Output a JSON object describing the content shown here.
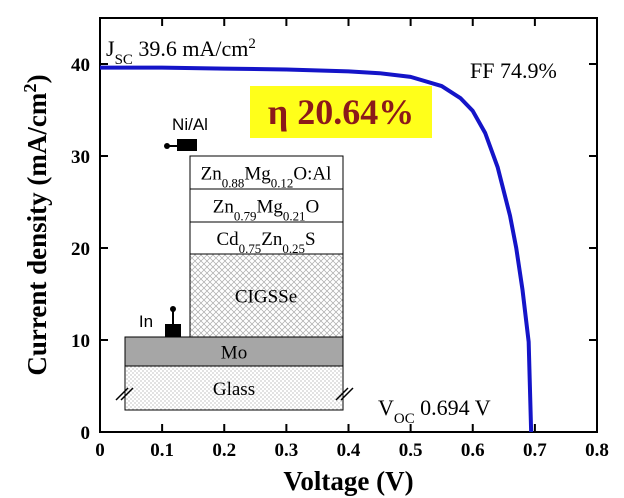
{
  "chart_data": {
    "type": "line",
    "x_label": "Voltage (V)",
    "y_label": [
      {
        "text": "Current density (mA/cm"
      },
      {
        "text": "2",
        "style": "super"
      },
      {
        "text": ")"
      }
    ],
    "x": [
      0,
      0.1,
      0.2,
      0.3,
      0.4,
      0.45,
      0.5,
      0.55,
      0.58,
      0.6,
      0.62,
      0.64,
      0.66,
      0.67,
      0.68,
      0.69,
      0.694
    ],
    "series": [
      {
        "color": "#1414c8",
        "values": [
          39.6,
          39.6,
          39.5,
          39.4,
          39.2,
          39.0,
          38.6,
          37.6,
          36.3,
          34.9,
          32.5,
          28.8,
          23.5,
          20.0,
          15.5,
          9.8,
          0
        ]
      }
    ],
    "xlim": [
      0,
      0.8
    ],
    "xticks": [
      0,
      0.1,
      0.2,
      0.3,
      0.4,
      0.5,
      0.6,
      0.7,
      0.8
    ],
    "ylim": [
      0,
      45
    ],
    "yticks": [
      0,
      10,
      20,
      30,
      40
    ],
    "annotations": {
      "jsc": [
        {
          "text": "J"
        },
        {
          "text": "SC",
          "style": "sub"
        },
        {
          "text": " 39.6 mA/cm"
        },
        {
          "text": "2",
          "style": "super"
        }
      ],
      "ff": [
        {
          "text": "FF 74.9%"
        }
      ],
      "voc": [
        {
          "text": "V"
        },
        {
          "text": "OC",
          "style": "sub"
        },
        {
          "text": " 0.694 V"
        }
      ],
      "eta": [
        {
          "text": "η 20.64%"
        }
      ]
    }
  },
  "inset": {
    "contact_top": "Ni/Al",
    "contact_bottom": "In",
    "layers": [
      [
        {
          "text": "Zn"
        },
        {
          "text": "0.88",
          "style": "sub"
        },
        {
          "text": "Mg"
        },
        {
          "text": "0.12",
          "style": "sub"
        },
        {
          "text": "O:Al"
        }
      ],
      [
        {
          "text": "Zn"
        },
        {
          "text": "0.79",
          "style": "sub"
        },
        {
          "text": "Mg"
        },
        {
          "text": "0.21",
          "style": "sub"
        },
        {
          "text": "O"
        }
      ],
      [
        {
          "text": "Cd"
        },
        {
          "text": "0.75",
          "style": "sub"
        },
        {
          "text": "Zn"
        },
        {
          "text": "0.25",
          "style": "sub"
        },
        {
          "text": "S"
        }
      ],
      [
        {
          "text": "CIGSSe"
        }
      ],
      [
        {
          "text": "Mo"
        }
      ],
      [
        {
          "text": "Glass"
        }
      ]
    ]
  }
}
